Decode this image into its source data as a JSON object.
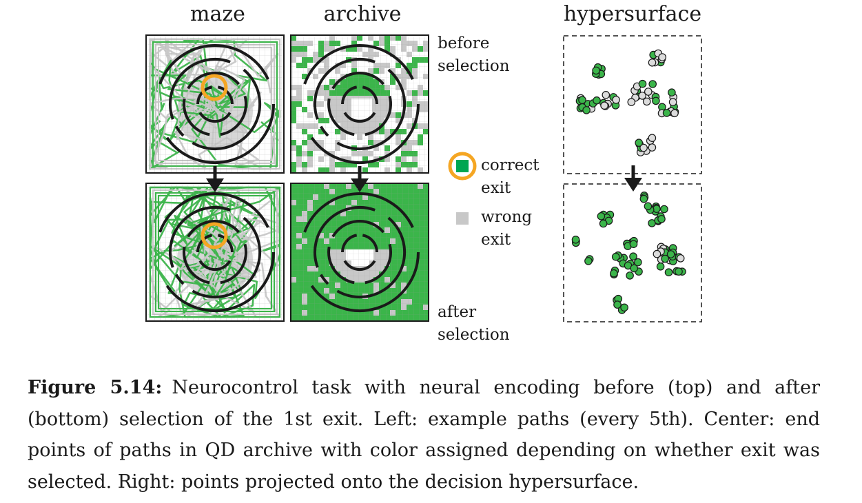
{
  "columns": {
    "maze": "maze",
    "archive": "archive",
    "hypersurface": "hypersurface"
  },
  "row_labels": {
    "before_line1": "before",
    "before_line2": "selection",
    "after_line1": "after",
    "after_line2": "selection"
  },
  "legend": {
    "correct_line1": "correct",
    "correct_line2": "exit",
    "wrong_line1": "wrong",
    "wrong_line2": "exit"
  },
  "colors": {
    "green": "#3bb54a",
    "gray": "#c8c8c8",
    "orange": "#f5a623",
    "dark": "#1a1a1a"
  },
  "caption": {
    "label": "Figure 5.14:",
    "text": "Neurocontrol task with neural encoding before (top) and after (bottom) selection of the 1st exit. Left: example paths (every 5th). Center: end points of paths in QD archive with color assigned depending on whether exit was selected. Right: points projected onto the decision hypersurface."
  }
}
